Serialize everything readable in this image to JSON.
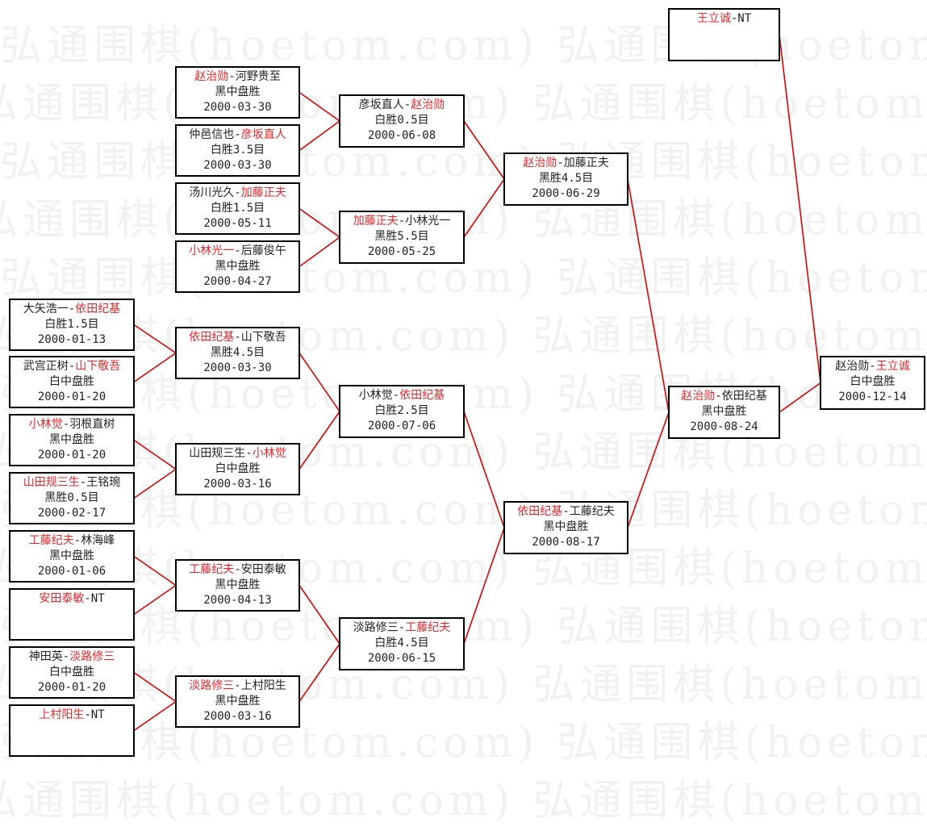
{
  "watermark": "弘通围棋(hoetom.com)",
  "colors": {
    "winner": "#e8262a",
    "line": "#e00000",
    "border": "#000000"
  },
  "rounds": [
    [
      {
        "p1": "大矢浩一",
        "p2": "依田纪基",
        "winner": 2,
        "result": "白胜1.5目",
        "date": "2000-01-13"
      },
      {
        "p1": "武宫正树",
        "p2": "山下敬吾",
        "winner": 2,
        "result": "白中盘胜",
        "date": "2000-01-20"
      },
      {
        "p1": "小林觉",
        "p2": "羽根直树",
        "winner": 1,
        "result": "黑中盘胜",
        "date": "2000-01-20"
      },
      {
        "p1": "山田规三生",
        "p2": "王铭琬",
        "winner": 1,
        "result": "黑胜0.5目",
        "date": "2000-02-17"
      },
      {
        "p1": "工藤纪夫",
        "p2": "林海峰",
        "winner": 1,
        "result": "黑中盘胜",
        "date": "2000-01-06"
      },
      {
        "p1": "安田泰敏",
        "p2": "NT",
        "winner": 1,
        "result": "",
        "date": ""
      },
      {
        "p1": "神田英",
        "p2": "淡路修三",
        "winner": 2,
        "result": "白中盘胜",
        "date": "2000-01-20"
      },
      {
        "p1": "上村阳生",
        "p2": "NT",
        "winner": 1,
        "result": "",
        "date": ""
      }
    ],
    [
      {
        "p1": "赵治勋",
        "p2": "河野贵至",
        "winner": 1,
        "result": "黑中盘胜",
        "date": "2000-03-30"
      },
      {
        "p1": "仲邑信也",
        "p2": "彦坂直人",
        "winner": 2,
        "result": "白胜3.5目",
        "date": "2000-03-30"
      },
      {
        "p1": "汤川光久",
        "p2": "加藤正夫",
        "winner": 2,
        "result": "白胜1.5目",
        "date": "2000-05-11"
      },
      {
        "p1": "小林光一",
        "p2": "后藤俊午",
        "winner": 1,
        "result": "黑中盘胜",
        "date": "2000-04-27"
      },
      {
        "p1": "依田纪基",
        "p2": "山下敬吾",
        "winner": 1,
        "result": "黑胜4.5目",
        "date": "2000-03-30"
      },
      {
        "p1": "山田规三生",
        "p2": "小林觉",
        "winner": 2,
        "result": "白中盘胜",
        "date": "2000-03-16"
      },
      {
        "p1": "工藤纪夫",
        "p2": "安田泰敏",
        "winner": 1,
        "result": "黑中盘胜",
        "date": "2000-04-13"
      },
      {
        "p1": "淡路修三",
        "p2": "上村阳生",
        "winner": 1,
        "result": "黑中盘胜",
        "date": "2000-03-16"
      }
    ],
    [
      {
        "p1": "彦坂直人",
        "p2": "赵治勋",
        "winner": 2,
        "result": "白胜0.5目",
        "date": "2000-06-08"
      },
      {
        "p1": "加藤正夫",
        "p2": "小林光一",
        "winner": 1,
        "result": "黑胜5.5目",
        "date": "2000-05-25"
      },
      {
        "p1": "小林觉",
        "p2": "依田纪基",
        "winner": 2,
        "result": "白胜2.5目",
        "date": "2000-07-06"
      },
      {
        "p1": "淡路修三",
        "p2": "工藤纪夫",
        "winner": 2,
        "result": "白胜4.5目",
        "date": "2000-06-15"
      }
    ],
    [
      {
        "p1": "赵治勋",
        "p2": "加藤正夫",
        "winner": 1,
        "result": "黑胜4.5目",
        "date": "2000-06-29"
      },
      {
        "p1": "依田纪基",
        "p2": "工藤纪夫",
        "winner": 1,
        "result": "黑中盘胜",
        "date": "2000-08-17"
      }
    ],
    [
      {
        "p1": "王立诚",
        "p2": "NT",
        "winner": 1,
        "result": "",
        "date": ""
      },
      {
        "p1": "赵治勋",
        "p2": "依田纪基",
        "winner": 1,
        "result": "黑中盘胜",
        "date": "2000-08-24"
      }
    ],
    [
      {
        "p1": "赵治勋",
        "p2": "王立诚",
        "winner": 2,
        "result": "白中盘胜",
        "date": "2000-12-14"
      }
    ]
  ]
}
